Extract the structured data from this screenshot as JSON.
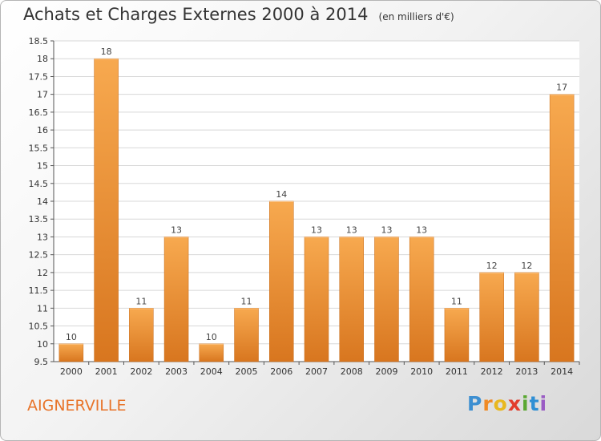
{
  "title": "Achats et Charges Externes 2000 à 2014",
  "unit": "(en milliers d'€)",
  "location": "AIGNERVILLE",
  "logo": {
    "letters": [
      "P",
      "r",
      "o",
      "x",
      "i",
      "t",
      "i"
    ],
    "colors": [
      "#3d8fd1",
      "#f08a24",
      "#e8b820",
      "#e23c2c",
      "#5aa832",
      "#2f8fd4",
      "#9a5cc4"
    ]
  },
  "colors": {
    "bar": "#f0a050",
    "bar_light": "#f7b060",
    "bar_dark": "#d87820",
    "grid": "#d8d8d8",
    "axis": "#555555"
  },
  "chart_data": {
    "type": "bar",
    "categories": [
      "2000",
      "2001",
      "2002",
      "2003",
      "2004",
      "2005",
      "2006",
      "2007",
      "2008",
      "2009",
      "2010",
      "2011",
      "2012",
      "2013",
      "2014"
    ],
    "values": [
      10,
      18,
      11,
      13,
      10,
      11,
      14,
      13,
      13,
      13,
      13,
      11,
      12,
      12,
      17
    ],
    "ylim": [
      9.5,
      18.5
    ],
    "yticks": [
      9.5,
      10,
      10.5,
      11,
      11.5,
      12,
      12.5,
      13,
      13.5,
      14,
      14.5,
      15,
      15.5,
      16,
      16.5,
      17,
      17.5,
      18,
      18.5
    ],
    "grid": true,
    "data_labels": true
  }
}
